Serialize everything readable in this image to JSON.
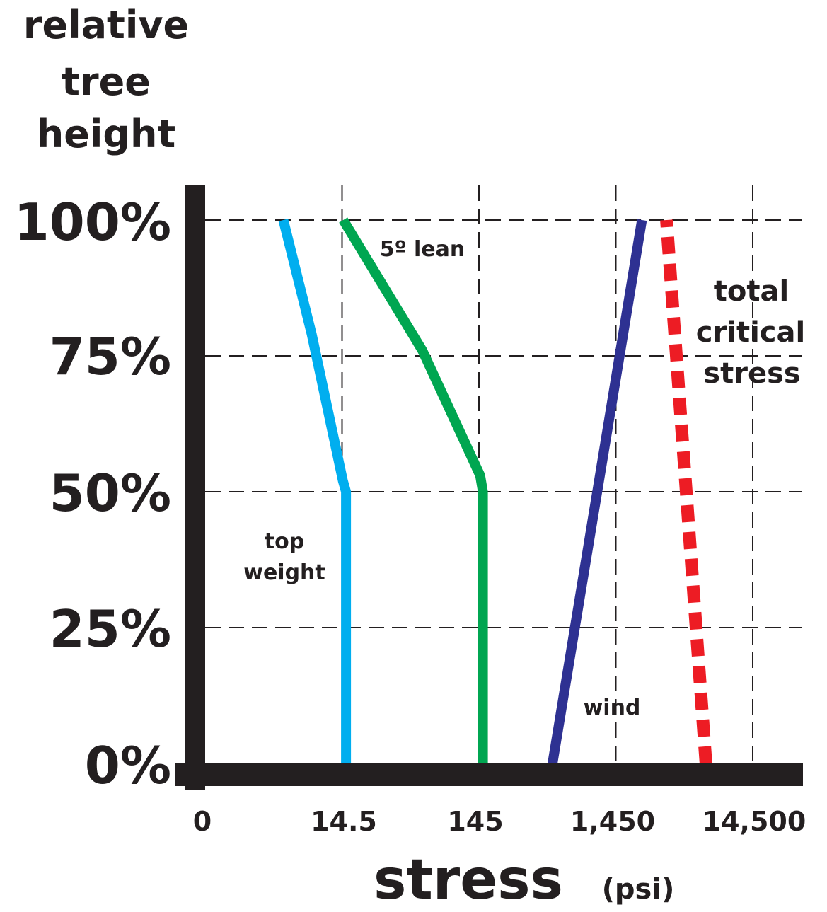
{
  "chart_data": {
    "type": "line",
    "ylabel_lines": [
      "relative",
      "tree",
      "height"
    ],
    "xlabel": "stress",
    "xlabel_unit": "(psi)",
    "x_ticks": [
      "0",
      "14.5",
      "145",
      "1,450",
      "14,500"
    ],
    "y_ticks": [
      "0%",
      "25%",
      "50%",
      "75%",
      "100%"
    ],
    "x_scale": "log",
    "xlim": [
      1.45,
      14500
    ],
    "ylim": [
      0,
      100
    ],
    "grid": true,
    "colors": {
      "axis": "#231f20",
      "grid": "#231f20",
      "top_weight": "#00aeef",
      "lean": "#00a651",
      "wind": "#2e3192",
      "total": "#ed1c24"
    },
    "series": [
      {
        "name": "top weight",
        "label_lines": [
          "top",
          "weight"
        ],
        "color": "#00aeef",
        "points": [
          [
            15.5,
            0
          ],
          [
            15.5,
            50
          ],
          [
            14.7,
            52
          ],
          [
            8.7,
            79
          ],
          [
            5.4,
            100
          ]
        ]
      },
      {
        "name": "5º lean",
        "label_lines": [
          "5º lean"
        ],
        "color": "#00a651",
        "points": [
          [
            155,
            0
          ],
          [
            155,
            50
          ],
          [
            148,
            53
          ],
          [
            56,
            76
          ],
          [
            14.8,
            100
          ]
        ]
      },
      {
        "name": "wind",
        "label_lines": [
          "wind"
        ],
        "color": "#2e3192",
        "points": [
          [
            500,
            0
          ],
          [
            2250,
            100
          ]
        ]
      },
      {
        "name": "total critical stress",
        "label_lines": [
          "total",
          "critical",
          "stress"
        ],
        "color": "#ed1c24",
        "dashed": true,
        "points": [
          [
            6600,
            0
          ],
          [
            3400,
            100
          ]
        ]
      }
    ]
  }
}
